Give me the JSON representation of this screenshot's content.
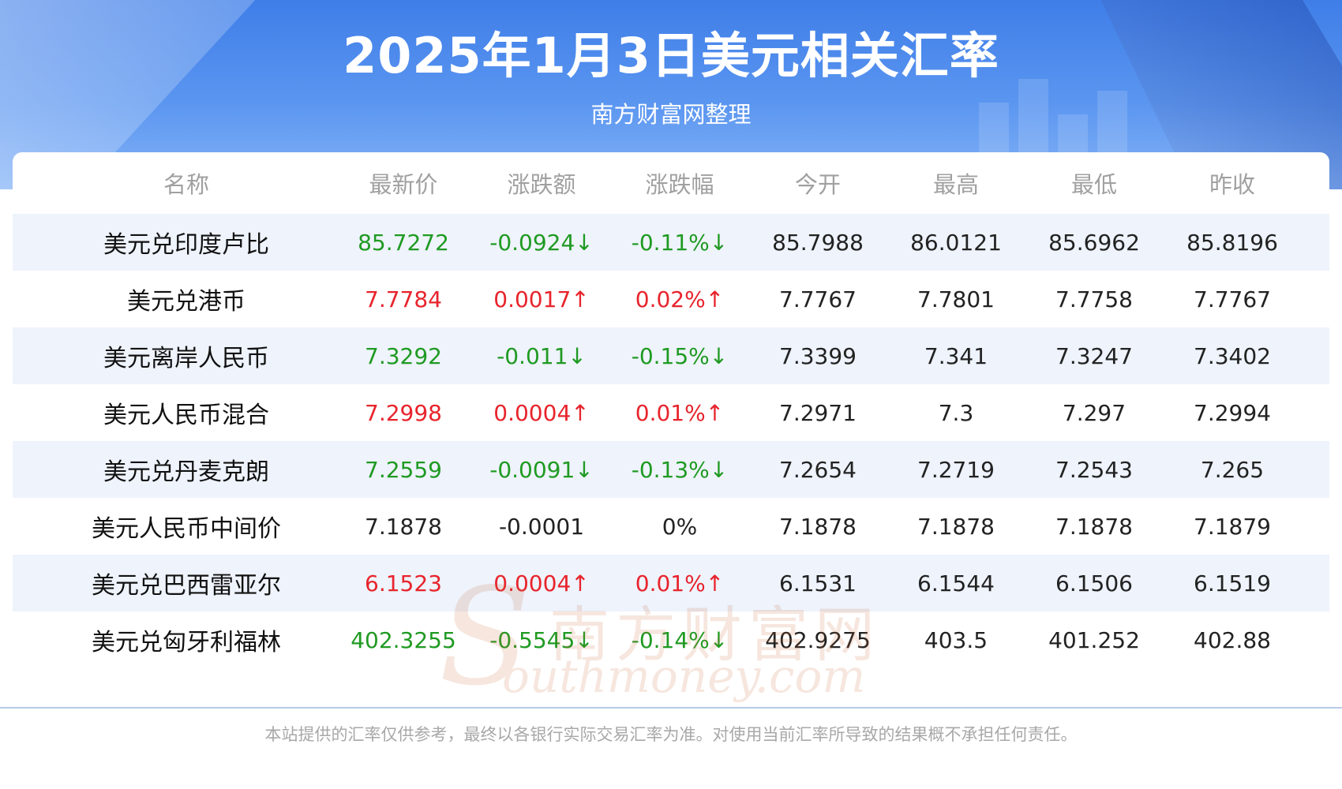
{
  "header": {
    "title": "2025年1月3日美元相关汇率",
    "subtitle": "南方财富网整理"
  },
  "table": {
    "columns": [
      "名称",
      "最新价",
      "涨跌额",
      "涨跌幅",
      "今开",
      "最高",
      "最低",
      "昨收"
    ],
    "rows": [
      {
        "name": "美元兑印度卢比",
        "latest": "85.7272",
        "change": "-0.0924↓",
        "pct": "-0.11%↓",
        "open": "85.7988",
        "high": "86.0121",
        "low": "85.6962",
        "prev": "85.8196",
        "trend": "down"
      },
      {
        "name": "美元兑港币",
        "latest": "7.7784",
        "change": "0.0017↑",
        "pct": "0.02%↑",
        "open": "7.7767",
        "high": "7.7801",
        "low": "7.7758",
        "prev": "7.7767",
        "trend": "up"
      },
      {
        "name": "美元离岸人民币",
        "latest": "7.3292",
        "change": "-0.011↓",
        "pct": "-0.15%↓",
        "open": "7.3399",
        "high": "7.341",
        "low": "7.3247",
        "prev": "7.3402",
        "trend": "down"
      },
      {
        "name": "美元人民币混合",
        "latest": "7.2998",
        "change": "0.0004↑",
        "pct": "0.01%↑",
        "open": "7.2971",
        "high": "7.3",
        "low": "7.297",
        "prev": "7.2994",
        "trend": "up"
      },
      {
        "name": "美元兑丹麦克朗",
        "latest": "7.2559",
        "change": "-0.0091↓",
        "pct": "-0.13%↓",
        "open": "7.2654",
        "high": "7.2719",
        "low": "7.2543",
        "prev": "7.265",
        "trend": "down"
      },
      {
        "name": "美元人民币中间价",
        "latest": "7.1878",
        "change": "-0.0001",
        "pct": "0%",
        "open": "7.1878",
        "high": "7.1878",
        "low": "7.1878",
        "prev": "7.1879",
        "trend": "flat"
      },
      {
        "name": "美元兑巴西雷亚尔",
        "latest": "6.1523",
        "change": "0.0004↑",
        "pct": "0.01%↑",
        "open": "6.1531",
        "high": "6.1544",
        "low": "6.1506",
        "prev": "6.1519",
        "trend": "up"
      },
      {
        "name": "美元兑匈牙利福林",
        "latest": "402.3255",
        "change": "-0.5545↓",
        "pct": "-0.14%↓",
        "open": "402.9275",
        "high": "403.5",
        "low": "401.252",
        "prev": "402.88",
        "trend": "down"
      }
    ]
  },
  "watermark": {
    "cn": "南方财富网",
    "en_initial": "S",
    "en": "outhmoney.com"
  },
  "footer": {
    "disclaimer": "本站提供的汇率仅供参考，最终以各银行实际交易汇率为准。对使用当前汇率所导致的结果概不承担任何责任。"
  },
  "colors": {
    "up": "#e8242c",
    "down": "#1f9a22",
    "header_blue": "#3f7ee8",
    "row_alt": "#eef3fc"
  }
}
